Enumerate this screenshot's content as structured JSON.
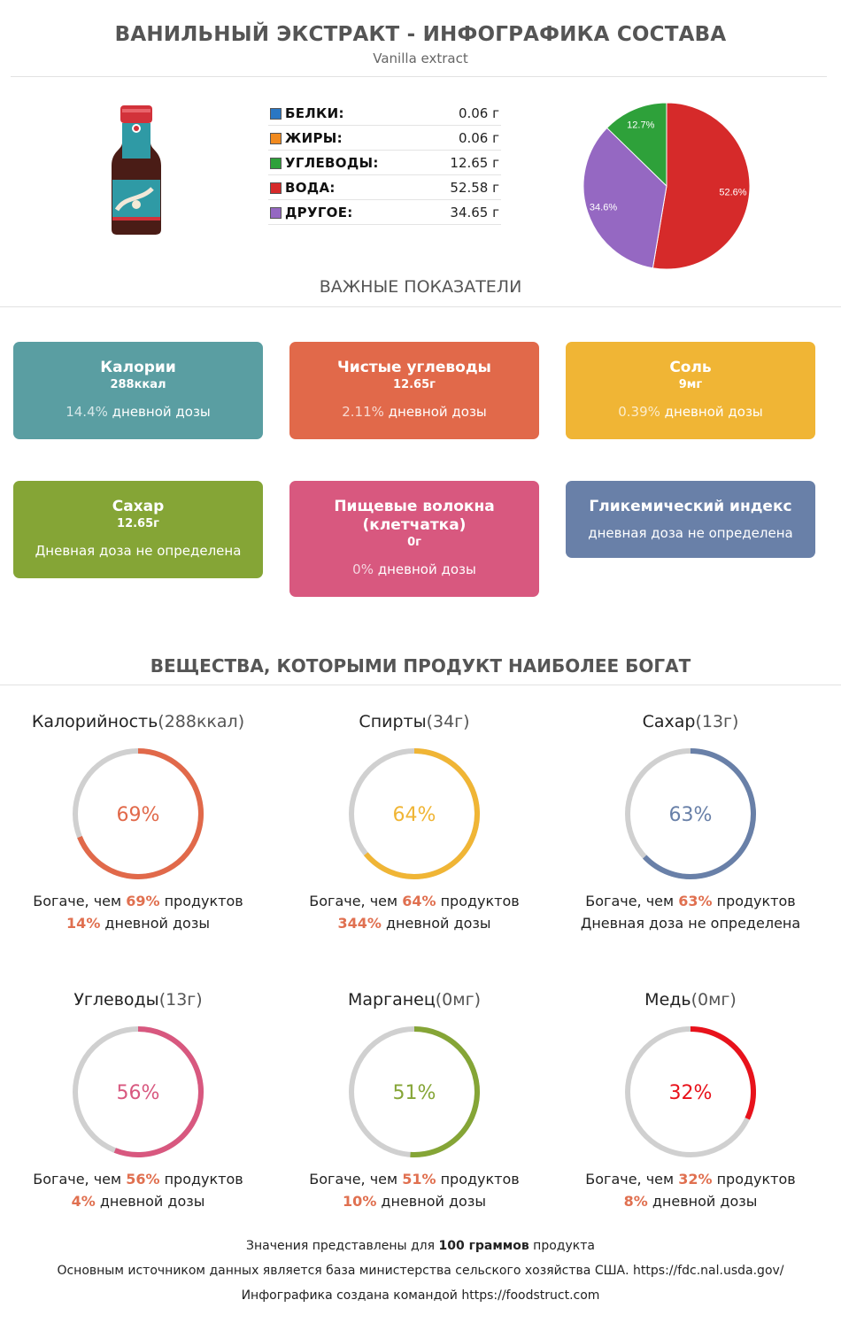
{
  "header": {
    "title": "ВАНИЛЬНЫЙ ЭКСТРАКТ - ИНФОГРАФИКА СОСТАВА",
    "subtitle": "Vanilla extract"
  },
  "composition": [
    {
      "name": "БЕЛКИ",
      "value": "0.06 г",
      "color": "#2a77c4"
    },
    {
      "name": "ЖИРЫ",
      "value": "0.06 г",
      "color": "#f18a1f"
    },
    {
      "name": "УГЛЕВОДЫ",
      "value": "12.65 г",
      "color": "#2ea13a"
    },
    {
      "name": "ВОДА",
      "value": "52.58 г",
      "color": "#d62a2a"
    },
    {
      "name": "ДРУГОЕ",
      "value": "34.65 г",
      "color": "#9568c2"
    }
  ],
  "chart_data": {
    "type": "pie",
    "slices": [
      {
        "name": "ВОДА",
        "value": 52.6,
        "label": "52.6%",
        "color": "#d62a2a"
      },
      {
        "name": "ДРУГОЕ",
        "value": 34.6,
        "label": "34.6%",
        "color": "#9568c2"
      },
      {
        "name": "УГЛЕВОДЫ",
        "value": 12.7,
        "label": "12.7%",
        "color": "#2ea13a"
      }
    ]
  },
  "key_section": {
    "title": "ВАЖНЫЕ ПОКАЗАТЕЛИ"
  },
  "cards": [
    {
      "title": "Калории",
      "value": "288ккал",
      "pct": "14.4%",
      "note": " дневной дозы",
      "color": "#5a9ea2"
    },
    {
      "title": "Чистые углеводы",
      "value": "12.65г",
      "pct": "2.11%",
      "note": " дневной дозы",
      "color": "#e1694a"
    },
    {
      "title": "Соль",
      "value": "9мг",
      "pct": "0.39%",
      "note": " дневной дозы",
      "color": "#f0b535"
    },
    {
      "title": "Сахар",
      "value": "12.65г",
      "pct": "",
      "note": "Дневная доза не определена",
      "color": "#85a536"
    },
    {
      "title": "Пищевые волокна (клетчатка)",
      "value": "0г",
      "pct": "0%",
      "note": " дневной дозы",
      "color": "#d8587f"
    },
    {
      "title": "Гликемический индекс",
      "value": "",
      "pct": "",
      "note": "дневная доза не определена",
      "color": "#6980a8"
    }
  ],
  "rich_section": {
    "title": "ВЕЩЕСТВА, КОТОРЫМИ ПРОДУКТ НАИБОЛЕЕ БОГАТ"
  },
  "rings": [
    {
      "name": "Калорийность",
      "amount": "(288ккал)",
      "percent": 69,
      "label": "69%",
      "color": "#e1694a",
      "richer_pct": "69%",
      "daily_pct": "14%",
      "daily_text": " дневной дозы"
    },
    {
      "name": "Спирты",
      "amount": "(34г)",
      "percent": 64,
      "label": "64%",
      "color": "#f0b535",
      "richer_pct": "64%",
      "daily_pct": "344%",
      "daily_text": " дневной дозы"
    },
    {
      "name": "Сахар",
      "amount": "(13г)",
      "percent": 63,
      "label": "63%",
      "color": "#6980a8",
      "richer_pct": "63%",
      "daily_pct": "",
      "daily_text": "Дневная доза не определена"
    },
    {
      "name": "Углеводы",
      "amount": "(13г)",
      "percent": 56,
      "label": "56%",
      "color": "#d8587f",
      "richer_pct": "56%",
      "daily_pct": "4%",
      "daily_text": " дневной дозы"
    },
    {
      "name": "Марганец",
      "amount": "(0мг)",
      "percent": 51,
      "label": "51%",
      "color": "#85a536",
      "richer_pct": "51%",
      "daily_pct": "10%",
      "daily_text": " дневной дозы"
    },
    {
      "name": "Медь",
      "amount": "(0мг)",
      "percent": 32,
      "label": "32%",
      "color": "#e8121b",
      "richer_pct": "32%",
      "daily_pct": "8%",
      "daily_text": " дневной дозы"
    }
  ],
  "ring_text": {
    "richer_prefix": "Богаче, чем ",
    "richer_suffix": " продуктов"
  },
  "footer": {
    "line1_a": "Значения представлены для ",
    "line1_b": "100 граммов",
    "line1_c": " продукта",
    "line2": "Основным источником данных является база министерства сельского хозяйства США. https://fdc.nal.usda.gov/",
    "line3": "Инфографика создана командой https://foodstruct.com"
  }
}
